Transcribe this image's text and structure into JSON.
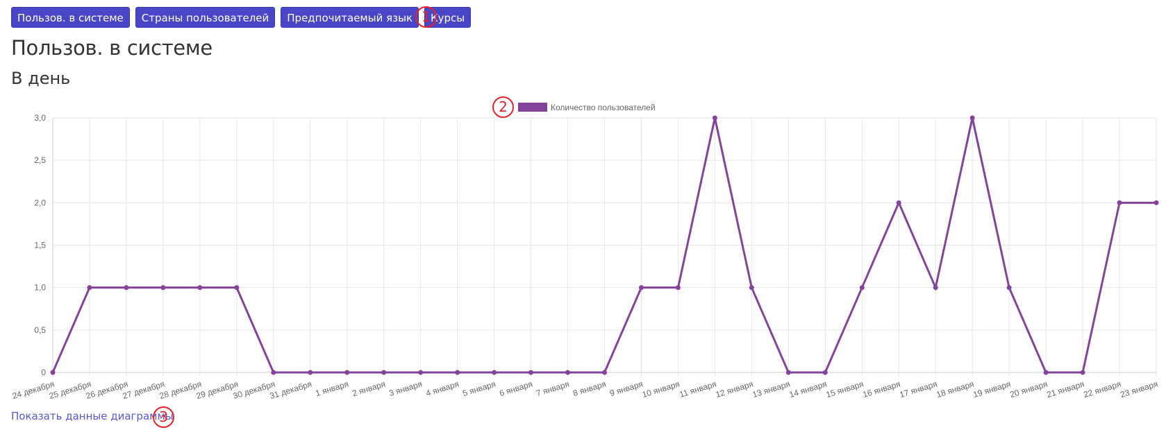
{
  "nav": {
    "tabs": [
      {
        "label": "Пользов. в системе"
      },
      {
        "label": "Страны пользователей"
      },
      {
        "label": "Предпочитаемый язык"
      },
      {
        "label": "Курсы"
      }
    ]
  },
  "markers": {
    "m1": "1",
    "m2": "2",
    "m3": "3"
  },
  "page_title": "Пользов. в системе",
  "period_title": "В день",
  "show_data_link": "Показать данные диаграммы",
  "colors": {
    "series": "#84429c",
    "button": "#4a46c8",
    "marker": "#e8212a",
    "link": "#5a56d6"
  },
  "chart_data": {
    "type": "line",
    "legend_position": "top",
    "grid": true,
    "categories": [
      "24 декабря",
      "25 декабря",
      "26 декабря",
      "27 декабря",
      "28 декабря",
      "29 декабря",
      "30 декабря",
      "31 декабря",
      "1 января",
      "2 января",
      "3 января",
      "4 января",
      "5 января",
      "6 января",
      "7 января",
      "8 января",
      "9 января",
      "10 января",
      "11 января",
      "12 января",
      "13 января",
      "14 января",
      "15 января",
      "16 января",
      "17 января",
      "18 января",
      "19 января",
      "20 января",
      "21 января",
      "22 января",
      "23 января"
    ],
    "series": [
      {
        "name": "Количество пользователей",
        "values": [
          0,
          1,
          1,
          1,
          1,
          1,
          0,
          0,
          0,
          0,
          0,
          0,
          0,
          0,
          0,
          0,
          1,
          1,
          3,
          1,
          0,
          0,
          1,
          2,
          1,
          3,
          1,
          0,
          0,
          2,
          2
        ]
      }
    ],
    "ylim": [
      0,
      3
    ],
    "yticks": [
      "0",
      "0,5",
      "1,0",
      "1,5",
      "2,0",
      "2,5",
      "3,0"
    ]
  }
}
